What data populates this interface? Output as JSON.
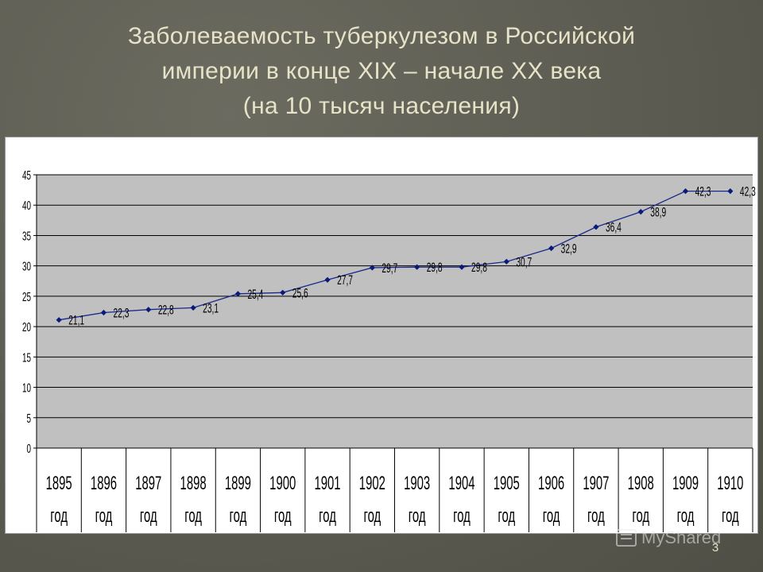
{
  "slide": {
    "title_lines": [
      "Заболеваемость туберкулезом в Российской",
      "империи в конце XIX – начале XX века",
      "(на 10 тысяч населения)"
    ],
    "slide_number": "3",
    "watermark": "MyShared"
  },
  "chart_data": {
    "type": "line",
    "title": "",
    "xlabel": "",
    "ylabel": "",
    "categories": [
      [
        "1895",
        "год"
      ],
      [
        "1896",
        "год"
      ],
      [
        "1897",
        "год"
      ],
      [
        "1898",
        "год"
      ],
      [
        "1899",
        "год"
      ],
      [
        "1900",
        "год"
      ],
      [
        "1901",
        "год"
      ],
      [
        "1902",
        "год"
      ],
      [
        "1903",
        "год"
      ],
      [
        "1904",
        "год"
      ],
      [
        "1905",
        "год"
      ],
      [
        "1906",
        "год"
      ],
      [
        "1907",
        "год"
      ],
      [
        "1908",
        "год"
      ],
      [
        "1909",
        "год"
      ],
      [
        "1910",
        "год"
      ]
    ],
    "values": [
      21.1,
      22.3,
      22.8,
      23.1,
      25.4,
      25.6,
      27.7,
      29.7,
      29.8,
      29.8,
      30.7,
      32.9,
      36.4,
      38.9,
      42.3,
      42.3
    ],
    "data_labels": [
      "21,1",
      "22,3",
      "22,8",
      "23,1",
      "25,4",
      "25,6",
      "27,7",
      "29,7",
      "29,8",
      "29,8",
      "30,7",
      "32,9",
      "36,4",
      "38,9",
      "42,3",
      "42,3"
    ],
    "ylim": [
      0,
      45
    ],
    "yticks": [
      "0",
      "5",
      "10",
      "15",
      "20",
      "25",
      "30",
      "35",
      "40",
      "45"
    ],
    "grid": true,
    "legend": "none",
    "colors": {
      "line": "#1a2a8c",
      "marker": "#0a1a7a",
      "plot_bg": "#c0c0c0",
      "grid": "#000000"
    }
  }
}
